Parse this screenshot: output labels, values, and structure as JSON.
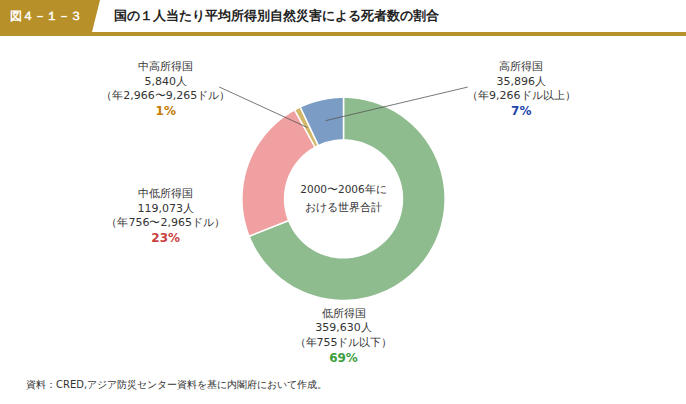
{
  "chart_data": {
    "type": "pie",
    "figure_label": "図４－１－３",
    "title": "国の１人当たり平均所得別自然災害による死者数の割合",
    "categories": [
      "低所得国",
      "中低所得国",
      "中高所得国",
      "高所得国"
    ],
    "values": [
      69,
      23,
      1,
      7
    ],
    "value_labels": [
      "69%",
      "23%",
      "1%",
      "7%"
    ],
    "data_labels": true,
    "colors": [
      "#8fbc8f",
      "#f0a0a0",
      "#d4b86a",
      "#7b9cc4"
    ],
    "label_colors": [
      "#3d9e3d",
      "#c94040",
      "#c47a00",
      "#2244aa"
    ],
    "count_labels": [
      "359,630人",
      "119,073人",
      "5,840人",
      "35,896人"
    ],
    "ranges": [
      "（年755ドル以下）",
      "（年756〜2,965ドル）",
      "（年2,966〜9,265ドル）",
      "（年9,266ドル以上）"
    ],
    "center_text": [
      "2000〜2006年に",
      "おける世界合計"
    ],
    "source": "資料：CRED,アジア防災センター資料を基に内閣府において作成。",
    "tick_labels": false
  }
}
